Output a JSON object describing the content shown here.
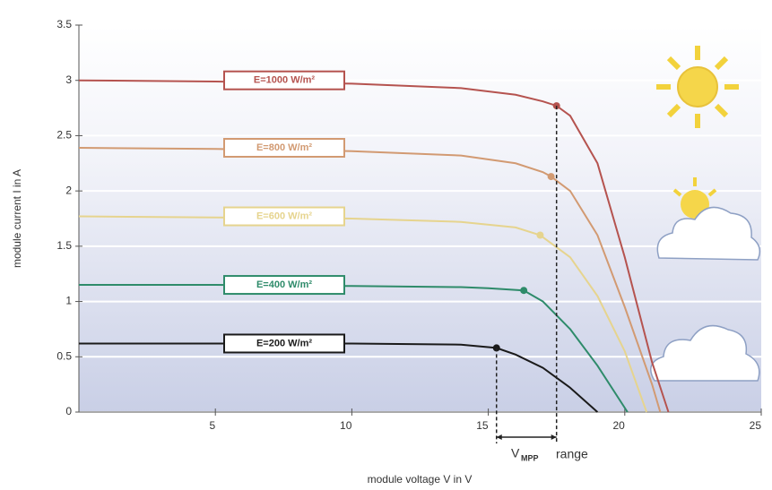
{
  "chart_data": {
    "type": "line",
    "x_label": "module voltage V in V",
    "y_label": "module current I in A",
    "xlim": [
      0,
      25
    ],
    "xticks": [
      5,
      10,
      15,
      20,
      25
    ],
    "ylim": [
      0,
      3.5
    ],
    "yticks": [
      0,
      0.5,
      1,
      1.5,
      2,
      2.5,
      3,
      3.5
    ],
    "grid": true,
    "annotation": {
      "symbol": "V",
      "subscript": "MPP",
      "text": "range"
    },
    "series": [
      {
        "name": "E=1000 W/m²",
        "color": "#b5534f",
        "mpp": [
          17.5,
          2.77
        ],
        "x": [
          0,
          5,
          10,
          14,
          16,
          17,
          17.5,
          18,
          19,
          20,
          21,
          21.6
        ],
        "values": [
          3.0,
          2.99,
          2.97,
          2.93,
          2.87,
          2.81,
          2.77,
          2.68,
          2.25,
          1.4,
          0.45,
          0
        ]
      },
      {
        "name": "E=800 W/m²",
        "color": "#d29a72",
        "mpp": [
          17.3,
          2.13
        ],
        "x": [
          0,
          5,
          10,
          14,
          16,
          17,
          17.3,
          18,
          19,
          20,
          21,
          21.3
        ],
        "values": [
          2.39,
          2.38,
          2.36,
          2.32,
          2.25,
          2.17,
          2.13,
          2.0,
          1.6,
          0.95,
          0.25,
          0
        ]
      },
      {
        "name": "E=600 W/m²",
        "color": "#e6d48e",
        "mpp": [
          16.9,
          1.6
        ],
        "x": [
          0,
          5,
          10,
          14,
          16,
          16.9,
          18,
          19,
          20,
          20.8
        ],
        "values": [
          1.77,
          1.76,
          1.75,
          1.72,
          1.67,
          1.6,
          1.4,
          1.05,
          0.55,
          0
        ]
      },
      {
        "name": "E=400 W/m²",
        "color": "#2e8b6a",
        "mpp": [
          16.3,
          1.1
        ],
        "x": [
          0,
          5,
          10,
          14,
          15,
          16.3,
          17,
          18,
          19,
          20.1
        ],
        "values": [
          1.15,
          1.15,
          1.14,
          1.13,
          1.12,
          1.1,
          1.0,
          0.75,
          0.42,
          0
        ]
      },
      {
        "name": "E=200 W/m²",
        "color": "#1a1a1a",
        "mpp": [
          15.3,
          0.58
        ],
        "x": [
          0,
          5,
          10,
          14,
          15.3,
          16,
          17,
          18,
          19
        ],
        "values": [
          0.62,
          0.62,
          0.62,
          0.61,
          0.58,
          0.52,
          0.4,
          0.22,
          0
        ]
      }
    ]
  }
}
